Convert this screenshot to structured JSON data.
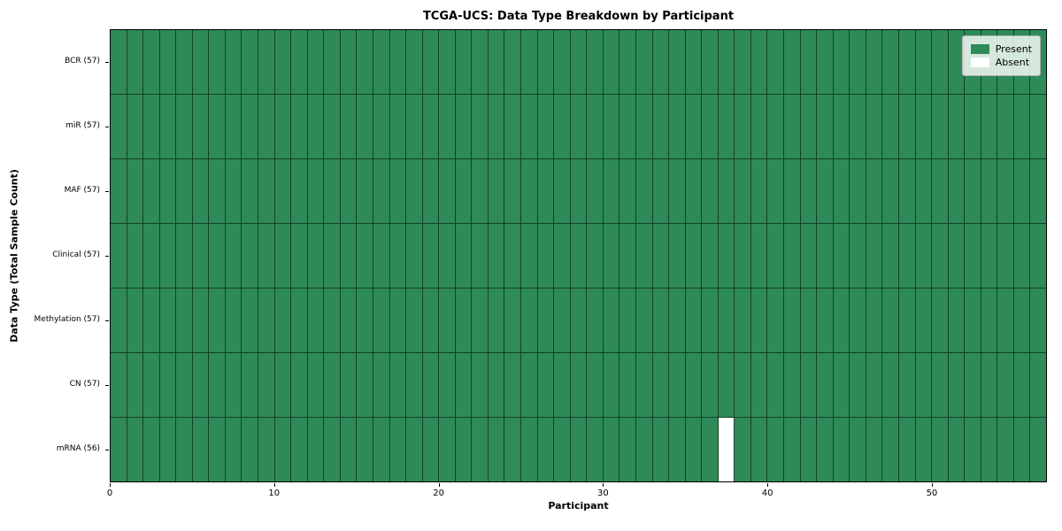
{
  "chart_data": {
    "type": "heatmap",
    "title": "TCGA-UCS: Data Type Breakdown by Participant",
    "xlabel": "Participant",
    "ylabel": "Data Type (Total Sample Count)",
    "n_participants": 57,
    "x_range": [
      0,
      57
    ],
    "x_ticks": [
      0,
      10,
      20,
      30,
      40,
      50
    ],
    "rows": [
      {
        "label": "BCR (57)",
        "data_type": "BCR",
        "present_count": 57,
        "absent": []
      },
      {
        "label": "miR (57)",
        "data_type": "miR",
        "present_count": 57,
        "absent": []
      },
      {
        "label": "MAF (57)",
        "data_type": "MAF",
        "present_count": 57,
        "absent": []
      },
      {
        "label": "Clinical (57)",
        "data_type": "Clinical",
        "present_count": 57,
        "absent": []
      },
      {
        "label": "Methylation (57)",
        "data_type": "Methylation",
        "present_count": 57,
        "absent": []
      },
      {
        "label": "CN (57)",
        "data_type": "CN",
        "present_count": 57,
        "absent": []
      },
      {
        "label": "mRNA (56)",
        "data_type": "mRNA",
        "present_count": 56,
        "absent": [
          37
        ]
      }
    ],
    "legend": [
      {
        "label": "Present",
        "color": "#2e8b57"
      },
      {
        "label": "Absent",
        "color": "#ffffff"
      }
    ],
    "colors": {
      "present": "#2e8b57",
      "absent": "#ffffff"
    },
    "legend_position": "upper right",
    "grid": true
  }
}
